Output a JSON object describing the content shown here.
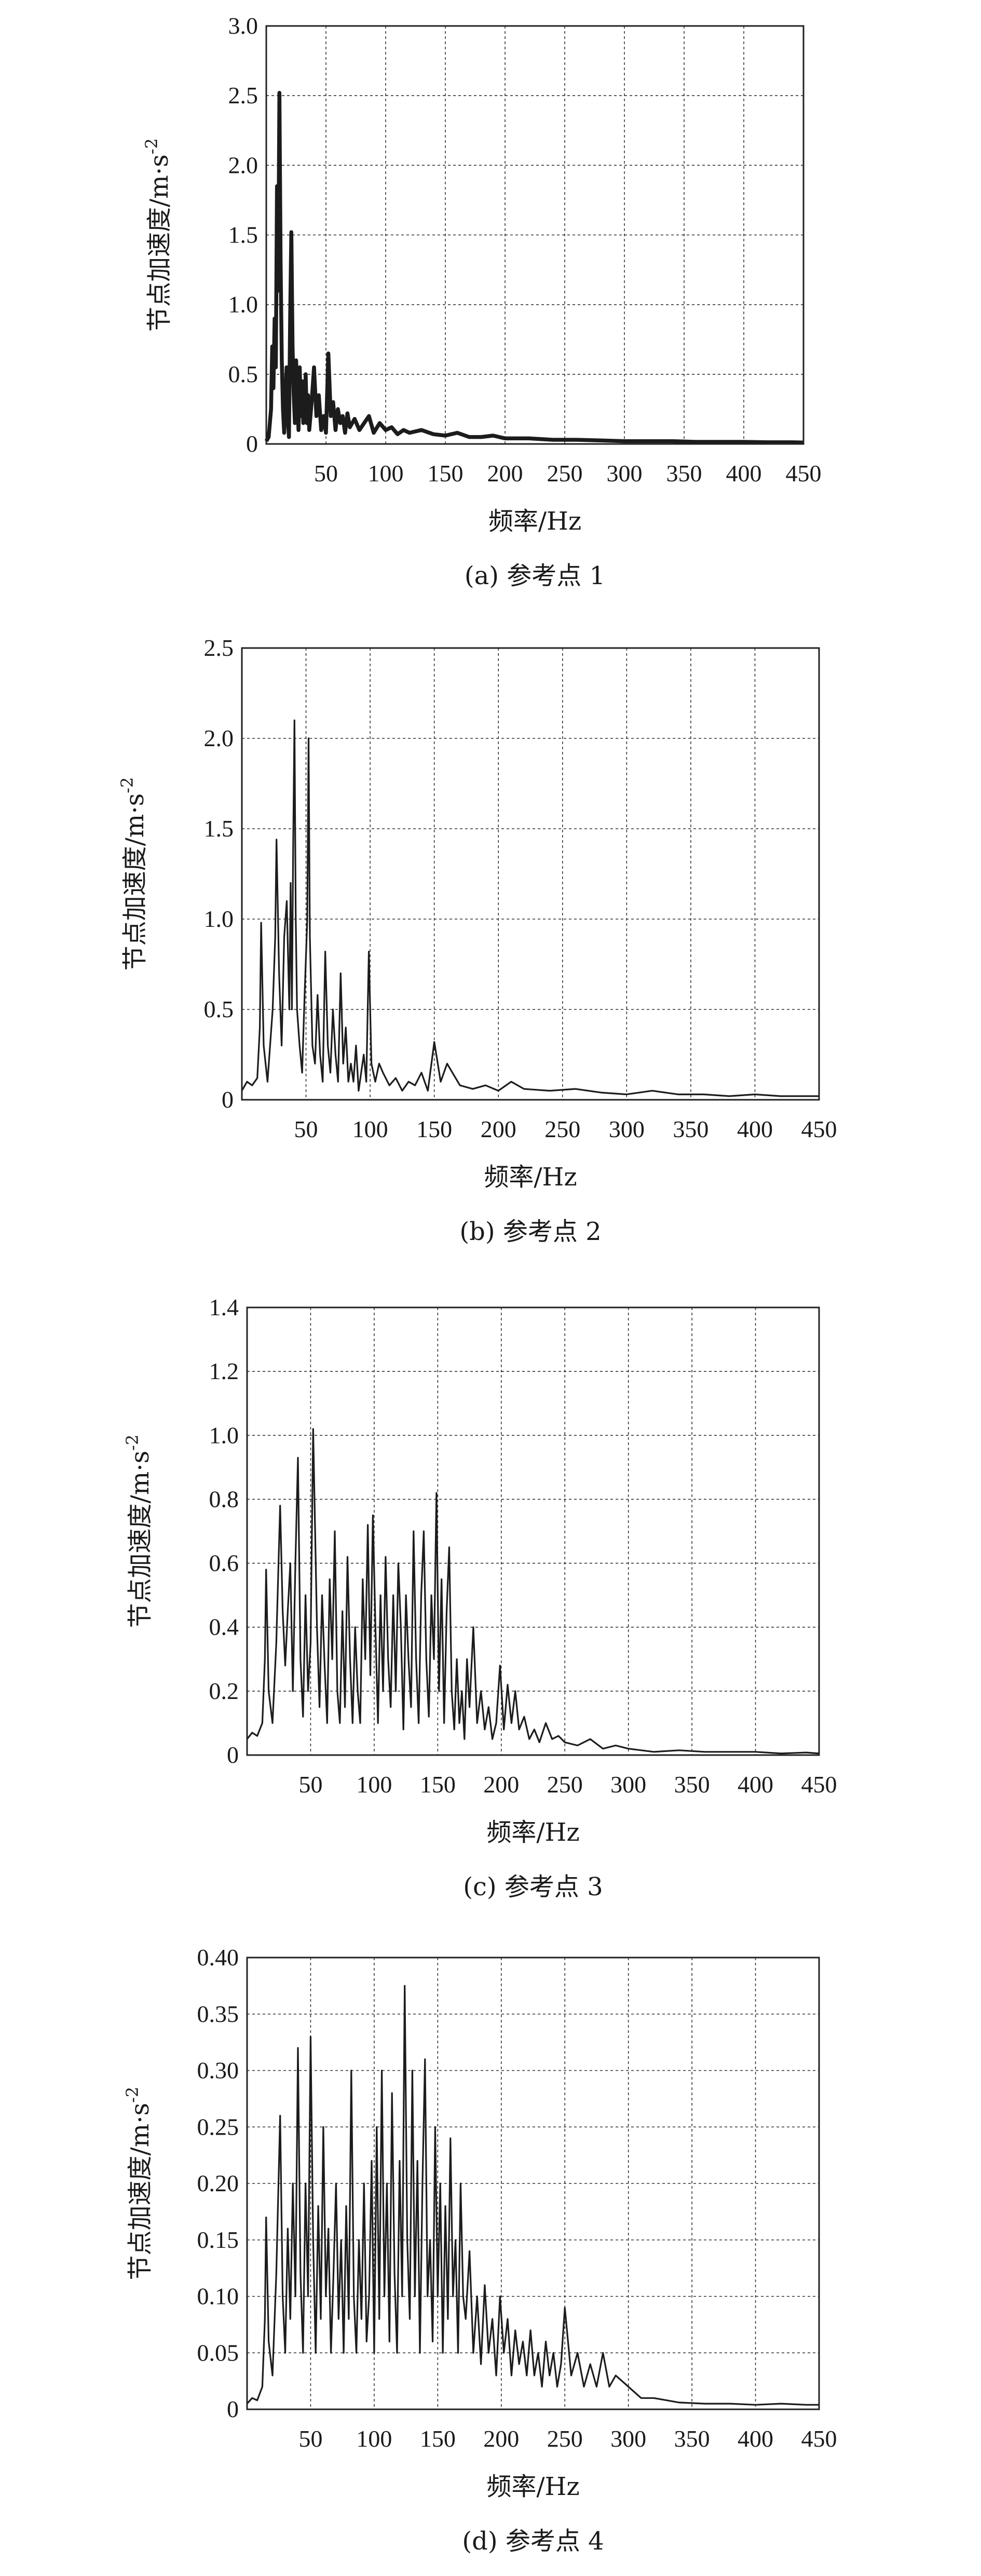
{
  "chart_data": [
    {
      "type": "line",
      "caption": "(a) 参考点 1",
      "xlabel": "频率/Hz",
      "ylabel": "节点加速度/m·s",
      "ylabel_sup": "-2",
      "xlim": [
        0,
        450
      ],
      "ylim": [
        0,
        3.0
      ],
      "xticks": [
        50,
        100,
        150,
        200,
        250,
        300,
        350,
        400,
        450
      ],
      "yticks": [
        0,
        0.5,
        1.0,
        1.5,
        2.0,
        2.5,
        3.0
      ],
      "ytick_labels": [
        "0",
        "0.5",
        "1.0",
        "1.5",
        "2.0",
        "2.5",
        "3.0"
      ],
      "grid": true,
      "series": [
        {
          "x": [
            0,
            2,
            4,
            5,
            6,
            7,
            8,
            9,
            10,
            11,
            12,
            13,
            14,
            15,
            16,
            17,
            18,
            19,
            20,
            21,
            22,
            23,
            24,
            25,
            26,
            27,
            28,
            29,
            30,
            31,
            32,
            33,
            34,
            35,
            36,
            38,
            40,
            42,
            44,
            46,
            48,
            50,
            52,
            54,
            56,
            58,
            60,
            62,
            64,
            66,
            68,
            70,
            74,
            78,
            82,
            86,
            90,
            95,
            100,
            105,
            110,
            115,
            120,
            130,
            140,
            150,
            160,
            170,
            180,
            190,
            200,
            220,
            240,
            260,
            280,
            300,
            320,
            340,
            360,
            380,
            400,
            420,
            440,
            450
          ],
          "y": [
            0.02,
            0.05,
            0.25,
            0.7,
            0.4,
            0.9,
            0.55,
            1.85,
            1.1,
            2.52,
            1.3,
            0.6,
            0.25,
            0.08,
            0.3,
            0.55,
            0.2,
            0.05,
            0.9,
            1.52,
            0.7,
            0.35,
            0.15,
            0.6,
            0.3,
            0.1,
            0.55,
            0.2,
            0.45,
            0.15,
            0.25,
            0.5,
            0.15,
            0.35,
            0.1,
            0.3,
            0.55,
            0.2,
            0.35,
            0.1,
            0.2,
            0.08,
            0.65,
            0.2,
            0.3,
            0.1,
            0.25,
            0.15,
            0.2,
            0.08,
            0.22,
            0.12,
            0.18,
            0.1,
            0.15,
            0.2,
            0.08,
            0.15,
            0.1,
            0.12,
            0.07,
            0.1,
            0.08,
            0.1,
            0.07,
            0.06,
            0.08,
            0.05,
            0.05,
            0.06,
            0.04,
            0.04,
            0.03,
            0.03,
            0.025,
            0.02,
            0.02,
            0.02,
            0.015,
            0.015,
            0.015,
            0.012,
            0.012,
            0.01
          ]
        }
      ]
    },
    {
      "type": "line",
      "caption": "(b) 参考点 2",
      "xlabel": "频率/Hz",
      "ylabel": "节点加速度/m·s",
      "ylabel_sup": "-2",
      "xlim": [
        0,
        450
      ],
      "ylim": [
        0,
        2.5
      ],
      "xticks": [
        50,
        100,
        150,
        200,
        250,
        300,
        350,
        400,
        450
      ],
      "yticks": [
        0,
        0.5,
        1.0,
        1.5,
        2.0,
        2.5
      ],
      "ytick_labels": [
        "0",
        "0.5",
        "1.0",
        "1.5",
        "2.0",
        "2.5"
      ],
      "grid": true,
      "series": [
        {
          "x": [
            0,
            4,
            8,
            12,
            14,
            15,
            17,
            20,
            24,
            26,
            27,
            29,
            31,
            33,
            35,
            37,
            38,
            39,
            40,
            41,
            42,
            43,
            45,
            47,
            49,
            51,
            52,
            53,
            55,
            57,
            59,
            61,
            63,
            65,
            67,
            69,
            71,
            73,
            75,
            77,
            79,
            81,
            83,
            85,
            87,
            89,
            91,
            93,
            95,
            97,
            99,
            101,
            104,
            107,
            110,
            115,
            120,
            125,
            130,
            135,
            140,
            145,
            150,
            155,
            160,
            170,
            180,
            190,
            200,
            210,
            220,
            240,
            260,
            280,
            300,
            320,
            340,
            360,
            380,
            400,
            420,
            440,
            450
          ],
          "y": [
            0.05,
            0.1,
            0.08,
            0.12,
            0.4,
            0.98,
            0.3,
            0.1,
            0.5,
            0.9,
            1.44,
            0.7,
            0.3,
            0.9,
            1.1,
            0.5,
            1.2,
            0.5,
            1.4,
            2.1,
            1.0,
            0.5,
            0.3,
            0.15,
            0.6,
            1.0,
            2.0,
            0.9,
            0.3,
            0.2,
            0.58,
            0.25,
            0.1,
            0.82,
            0.3,
            0.15,
            0.5,
            0.25,
            0.1,
            0.7,
            0.2,
            0.4,
            0.1,
            0.2,
            0.1,
            0.3,
            0.05,
            0.15,
            0.25,
            0.1,
            0.82,
            0.2,
            0.1,
            0.2,
            0.15,
            0.08,
            0.12,
            0.05,
            0.1,
            0.08,
            0.15,
            0.05,
            0.32,
            0.1,
            0.2,
            0.08,
            0.06,
            0.08,
            0.05,
            0.1,
            0.06,
            0.05,
            0.06,
            0.04,
            0.03,
            0.05,
            0.03,
            0.03,
            0.02,
            0.03,
            0.02,
            0.02,
            0.02
          ]
        }
      ]
    },
    {
      "type": "line",
      "caption": "(c) 参考点 3",
      "xlabel": "频率/Hz",
      "ylabel": "节点加速度/m·s",
      "ylabel_sup": "-2",
      "xlim": [
        0,
        450
      ],
      "ylim": [
        0,
        1.4
      ],
      "xticks": [
        50,
        100,
        150,
        200,
        250,
        300,
        350,
        400,
        450
      ],
      "yticks": [
        0,
        0.2,
        0.4,
        0.6,
        0.8,
        1.0,
        1.2,
        1.4
      ],
      "ytick_labels": [
        "0",
        "0.2",
        "0.4",
        "0.6",
        "0.8",
        "1.0",
        "1.2",
        "1.4"
      ],
      "grid": true,
      "series": [
        {
          "x": [
            0,
            4,
            8,
            12,
            14,
            15,
            17,
            20,
            23,
            26,
            28,
            30,
            32,
            34,
            36,
            38,
            40,
            42,
            44,
            46,
            48,
            50,
            52,
            55,
            57,
            59,
            61,
            63,
            65,
            67,
            69,
            71,
            73,
            75,
            77,
            79,
            81,
            83,
            85,
            87,
            89,
            91,
            93,
            95,
            97,
            99,
            101,
            103,
            105,
            107,
            109,
            111,
            113,
            115,
            117,
            119,
            121,
            123,
            125,
            127,
            129,
            131,
            133,
            135,
            137,
            139,
            141,
            143,
            145,
            147,
            149,
            151,
            153,
            155,
            157,
            159,
            161,
            163,
            165,
            167,
            169,
            171,
            173,
            175,
            178,
            181,
            184,
            187,
            190,
            193,
            196,
            199,
            202,
            205,
            208,
            211,
            214,
            218,
            222,
            226,
            230,
            235,
            240,
            245,
            250,
            260,
            270,
            280,
            290,
            300,
            320,
            340,
            360,
            380,
            400,
            420,
            440,
            450
          ],
          "y": [
            0.05,
            0.07,
            0.06,
            0.1,
            0.3,
            0.58,
            0.2,
            0.1,
            0.35,
            0.78,
            0.45,
            0.28,
            0.45,
            0.6,
            0.2,
            0.6,
            0.93,
            0.3,
            0.12,
            0.5,
            0.2,
            0.35,
            1.02,
            0.4,
            0.15,
            0.5,
            0.28,
            0.1,
            0.55,
            0.3,
            0.7,
            0.2,
            0.1,
            0.45,
            0.15,
            0.62,
            0.3,
            0.1,
            0.4,
            0.2,
            0.1,
            0.55,
            0.3,
            0.72,
            0.25,
            0.75,
            0.4,
            0.1,
            0.5,
            0.2,
            0.62,
            0.3,
            0.15,
            0.5,
            0.2,
            0.6,
            0.4,
            0.08,
            0.5,
            0.3,
            0.15,
            0.7,
            0.3,
            0.1,
            0.5,
            0.7,
            0.3,
            0.12,
            0.5,
            0.3,
            0.82,
            0.2,
            0.55,
            0.1,
            0.45,
            0.65,
            0.2,
            0.08,
            0.3,
            0.1,
            0.2,
            0.05,
            0.3,
            0.15,
            0.4,
            0.1,
            0.2,
            0.08,
            0.15,
            0.05,
            0.1,
            0.28,
            0.08,
            0.22,
            0.1,
            0.2,
            0.08,
            0.12,
            0.05,
            0.08,
            0.04,
            0.1,
            0.05,
            0.06,
            0.04,
            0.03,
            0.05,
            0.02,
            0.03,
            0.02,
            0.01,
            0.015,
            0.01,
            0.01,
            0.01,
            0.005,
            0.008,
            0.005
          ]
        }
      ]
    },
    {
      "type": "line",
      "caption": "(d) 参考点 4",
      "xlabel": "频率/Hz",
      "ylabel": "节点加速度/m·s",
      "ylabel_sup": "-2",
      "xlim": [
        0,
        450
      ],
      "ylim": [
        0,
        0.4
      ],
      "xticks": [
        50,
        100,
        150,
        200,
        250,
        300,
        350,
        400,
        450
      ],
      "yticks": [
        0,
        0.05,
        0.1,
        0.15,
        0.2,
        0.25,
        0.3,
        0.35,
        0.4
      ],
      "ytick_labels": [
        "0",
        "0.05",
        "0.10",
        "0.15",
        "0.20",
        "0.25",
        "0.30",
        "0.35",
        "0.40"
      ],
      "grid": true,
      "series": [
        {
          "x": [
            0,
            4,
            8,
            12,
            14,
            15,
            17,
            20,
            23,
            26,
            28,
            30,
            32,
            34,
            36,
            38,
            40,
            42,
            44,
            46,
            48,
            50,
            52,
            54,
            56,
            58,
            60,
            62,
            64,
            66,
            68,
            70,
            72,
            74,
            76,
            78,
            80,
            82,
            84,
            86,
            88,
            90,
            92,
            94,
            96,
            98,
            100,
            102,
            104,
            106,
            108,
            110,
            112,
            114,
            116,
            118,
            120,
            122,
            124,
            126,
            128,
            130,
            132,
            134,
            136,
            138,
            140,
            142,
            144,
            146,
            148,
            150,
            152,
            154,
            156,
            158,
            160,
            162,
            164,
            166,
            168,
            170,
            172,
            175,
            178,
            181,
            184,
            187,
            190,
            193,
            196,
            199,
            202,
            205,
            208,
            211,
            214,
            217,
            220,
            223,
            226,
            229,
            232,
            235,
            238,
            241,
            244,
            247,
            250,
            255,
            260,
            265,
            270,
            275,
            280,
            285,
            290,
            300,
            310,
            320,
            330,
            340,
            360,
            380,
            400,
            420,
            440,
            450
          ],
          "y": [
            0.005,
            0.01,
            0.008,
            0.02,
            0.08,
            0.17,
            0.06,
            0.03,
            0.12,
            0.26,
            0.1,
            0.05,
            0.16,
            0.08,
            0.2,
            0.1,
            0.32,
            0.12,
            0.05,
            0.2,
            0.1,
            0.33,
            0.15,
            0.05,
            0.18,
            0.08,
            0.25,
            0.1,
            0.16,
            0.05,
            0.12,
            0.2,
            0.08,
            0.15,
            0.05,
            0.18,
            0.08,
            0.3,
            0.1,
            0.05,
            0.15,
            0.08,
            0.2,
            0.06,
            0.1,
            0.22,
            0.05,
            0.25,
            0.08,
            0.3,
            0.1,
            0.2,
            0.06,
            0.28,
            0.12,
            0.05,
            0.22,
            0.1,
            0.375,
            0.15,
            0.08,
            0.3,
            0.1,
            0.22,
            0.05,
            0.2,
            0.31,
            0.1,
            0.15,
            0.06,
            0.25,
            0.1,
            0.2,
            0.05,
            0.18,
            0.08,
            0.24,
            0.1,
            0.15,
            0.05,
            0.2,
            0.1,
            0.08,
            0.14,
            0.05,
            0.1,
            0.04,
            0.11,
            0.05,
            0.08,
            0.03,
            0.1,
            0.05,
            0.08,
            0.03,
            0.07,
            0.04,
            0.06,
            0.03,
            0.07,
            0.03,
            0.05,
            0.02,
            0.06,
            0.03,
            0.05,
            0.02,
            0.04,
            0.09,
            0.03,
            0.05,
            0.02,
            0.04,
            0.02,
            0.05,
            0.02,
            0.03,
            0.02,
            0.01,
            0.01,
            0.008,
            0.006,
            0.005,
            0.005,
            0.004,
            0.005,
            0.004,
            0.004
          ]
        }
      ]
    }
  ]
}
